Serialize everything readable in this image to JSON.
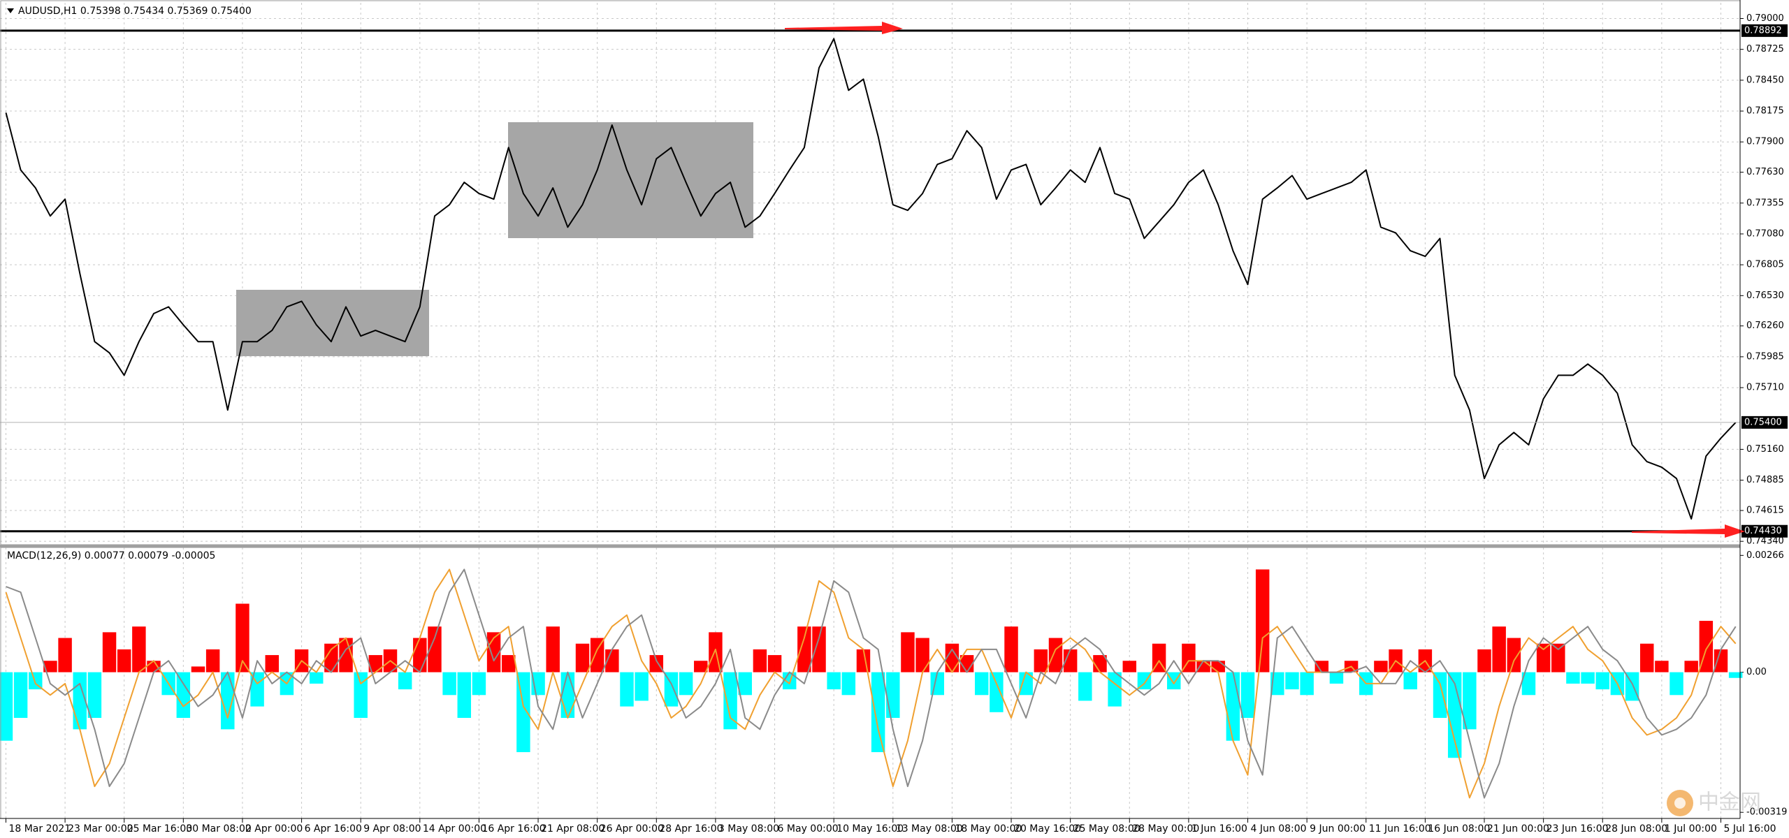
{
  "chart_data": [
    {
      "type": "line",
      "title": "AUDUSD,H1 0.75398 0.75434 0.75369 0.75400",
      "color": "#000000",
      "values": [
        0.7816,
        0.7765,
        0.7749,
        0.7724,
        0.7739,
        0.7673,
        0.7612,
        0.7602,
        0.7582,
        0.7612,
        0.7637,
        0.7643,
        0.7627,
        0.7612,
        0.7612,
        0.7551,
        0.7612,
        0.7612,
        0.7622,
        0.7643,
        0.7648,
        0.7627,
        0.7612,
        0.7643,
        0.7617,
        0.7622,
        0.7617,
        0.7612,
        0.7643,
        0.7724,
        0.7734,
        0.7754,
        0.7744,
        0.7739,
        0.7785,
        0.7744,
        0.7724,
        0.7749,
        0.7714,
        0.7734,
        0.7765,
        0.7805,
        0.7765,
        0.7734,
        0.7775,
        0.7785,
        0.7754,
        0.7724,
        0.7744,
        0.7754,
        0.7714,
        0.7724,
        0.7744,
        0.7765,
        0.7785,
        0.7856,
        0.7882,
        0.7836,
        0.7846,
        0.7795,
        0.7734,
        0.7729,
        0.7744,
        0.777,
        0.7775,
        0.78,
        0.7785,
        0.7739,
        0.7765,
        0.777,
        0.7734,
        0.7749,
        0.7765,
        0.7754,
        0.7785,
        0.7744,
        0.7739,
        0.7704,
        0.7719,
        0.7734,
        0.7754,
        0.7765,
        0.7734,
        0.7693,
        0.7663,
        0.7739,
        0.7749,
        0.776,
        0.7739,
        0.7744,
        0.7749,
        0.7754,
        0.7765,
        0.7714,
        0.7709,
        0.7693,
        0.7688,
        0.7704,
        0.7582,
        0.7551,
        0.749,
        0.752,
        0.7531,
        0.752,
        0.7561,
        0.7582,
        0.7582,
        0.7592,
        0.7582,
        0.7566,
        0.752,
        0.7505,
        0.75,
        0.749,
        0.7454,
        0.751,
        0.7526,
        0.754
      ],
      "xlim": [
        -0.4,
        117.3
      ],
      "ylim": [
        0.7431,
        0.7914
      ],
      "yticks": [
        {
          "value": 0.79,
          "label": "0.79000"
        },
        0.78725,
        {
          "value": 0.7845,
          "label": "0.78450"
        },
        0.78175,
        {
          "value": 0.779,
          "label": "0.77900"
        },
        {
          "value": 0.7763,
          "label": "0.77630"
        },
        0.77355,
        {
          "value": 0.7708,
          "label": "0.77080"
        },
        0.76805,
        {
          "value": 0.7653,
          "label": "0.76530"
        },
        {
          "value": 0.7626,
          "label": "0.76260"
        },
        0.75985,
        {
          "value": 0.7571,
          "label": "0.75710"
        },
        {
          "value": 0.7516,
          "label": "0.75160"
        },
        0.74885,
        0.74615,
        {
          "value": 0.7434,
          "label": "0.74340"
        }
      ],
      "grid": true,
      "hlines": [
        {
          "value": 0.78892,
          "label": "0.78892"
        },
        {
          "value": 0.7443,
          "label": "0.74430"
        }
      ],
      "last_price": {
        "value": 0.754,
        "label": "0.75400"
      }
    },
    {
      "type": "macd",
      "title": "MACD(12,26,9) 0.00077 0.00079 -0.00005",
      "positive_color": "#ff0000",
      "negative_color": "#00ffff",
      "values": [
        -0.00156,
        -0.00104,
        -0.00039,
        0.00026,
        0.00078,
        -0.0013,
        -0.00104,
        0.00091,
        0.00052,
        0.00104,
        0.00026,
        -0.00052,
        -0.00104,
        0.00013,
        0.00052,
        -0.0013,
        0.00156,
        -0.00078,
        0.00039,
        -0.00052,
        0.00052,
        -0.00026,
        0.00065,
        0.00078,
        -0.00104,
        0.00039,
        0.00052,
        -0.00039,
        0.00078,
        0.00104,
        -0.00052,
        -0.00104,
        -0.00052,
        0.00091,
        0.00039,
        -0.00182,
        -0.00052,
        0.00104,
        -0.00104,
        0.00065,
        0.00078,
        0.00052,
        -0.00078,
        -0.00065,
        0.00039,
        -0.00078,
        -0.00052,
        0.00026,
        0.00091,
        -0.0013,
        -0.00052,
        0.00052,
        0.00039,
        -0.00039,
        0.00104,
        0.00104,
        -0.00039,
        -0.00052,
        0.00052,
        -0.00182,
        -0.00104,
        0.00091,
        0.00078,
        -0.00052,
        0.00065,
        0.00039,
        -0.00052,
        -0.00091,
        0.00104,
        -0.00052,
        0.00052,
        0.00078,
        0.00052,
        -0.00065,
        0.00039,
        -0.00078,
        0.00026,
        -0.00039,
        0.00065,
        -0.00039,
        0.00065,
        0.00026,
        0.00026,
        -0.00156,
        -0.00104,
        0.00234,
        -0.00052,
        -0.00039,
        -0.00052,
        0.00026,
        -0.00026,
        0.00026,
        -0.00052,
        0.00026,
        0.00052,
        -0.00039,
        0.00052,
        -0.00104,
        -0.00195,
        -0.0013,
        0.00052,
        0.00104,
        0.00078,
        -0.00052,
        0.00065,
        0.00065,
        -0.00026,
        -0.00026,
        -0.00039,
        -0.00052,
        -0.00065,
        0.00065,
        0.00026,
        -0.00052,
        0.00026,
        0.00117,
        0.00052,
        -0.00013
      ],
      "series": [
        {
          "color": "#f0a030",
          "values": [
            0.00182,
            0.00078,
            -0.00026,
            -0.00052,
            -0.00026,
            -0.0013,
            -0.0026,
            -0.00208,
            -0.00104,
            0,
            0.00026,
            -0.00026,
            -0.00078,
            -0.00052,
            0,
            -0.00104,
            0.00026,
            -0.00026,
            0,
            -0.00026,
            0.00026,
            0,
            0.00052,
            0.00078,
            -0.00026,
            0,
            0.00026,
            0,
            0.00078,
            0.00182,
            0.00234,
            0.0013,
            0.00026,
            0.00078,
            0.00104,
            -0.00078,
            -0.0013,
            0,
            -0.00104,
            -0.00026,
            0.00052,
            0.00104,
            0.0013,
            0.00026,
            -0.00026,
            -0.00104,
            -0.00078,
            -0.00026,
            0.00052,
            -0.00104,
            -0.0013,
            -0.00052,
            0,
            -0.00026,
            0.00078,
            0.00208,
            0.00182,
            0.00078,
            0.00052,
            -0.0013,
            -0.0026,
            -0.00156,
            0,
            0.00052,
            0,
            0.00052,
            0.00052,
            -0.00026,
            -0.00104,
            0,
            -0.00026,
            0.00052,
            0.00078,
            0.00052,
            0,
            -0.00026,
            -0.00052,
            -0.00026,
            0.00026,
            -0.00026,
            0.00026,
            0.00026,
            0,
            -0.00156,
            -0.00234,
            0.00078,
            0.00104,
            0.00052,
            0,
            0,
            0,
            0.00013,
            -0.00026,
            -0.00026,
            0.00026,
            0,
            0.00026,
            -0.00026,
            -0.00156,
            -0.00286,
            -0.00208,
            -0.00078,
            0.00026,
            0.00078,
            0.00052,
            0.00078,
            0.00104,
            0.00052,
            0.00026,
            -0.00026,
            -0.00104,
            -0.00143,
            -0.0013,
            -0.00104,
            -0.00052,
            0.00052,
            0.00104,
            0.00065
          ]
        },
        {
          "color": "#8a8a8a",
          "values": [
            0.00195,
            0.00182,
            0.00078,
            -0.00026,
            -0.00052,
            -0.00026,
            -0.0013,
            -0.0026,
            -0.00208,
            -0.00104,
            0,
            0.00026,
            -0.00026,
            -0.00078,
            -0.00052,
            0,
            -0.00104,
            0.00026,
            -0.00026,
            0,
            -0.00026,
            0.00026,
            0,
            0.00052,
            0.00078,
            -0.00026,
            0,
            0.00026,
            0,
            0.00078,
            0.00182,
            0.00234,
            0.0013,
            0.00026,
            0.00078,
            0.00104,
            -0.00078,
            -0.0013,
            0,
            -0.00104,
            -0.00026,
            0.00052,
            0.00104,
            0.0013,
            0.00026,
            -0.00026,
            -0.00104,
            -0.00078,
            -0.00026,
            0.00052,
            -0.00104,
            -0.0013,
            -0.00052,
            0,
            -0.00026,
            0.00078,
            0.00208,
            0.00182,
            0.00078,
            0.00052,
            -0.0013,
            -0.0026,
            -0.00156,
            0,
            0.00052,
            0,
            0.00052,
            0.00052,
            -0.00026,
            -0.00104,
            0,
            -0.00026,
            0.00052,
            0.00078,
            0.00052,
            0,
            -0.00026,
            -0.00052,
            -0.00026,
            0.00026,
            -0.00026,
            0.00026,
            0.00026,
            0,
            -0.00156,
            -0.00234,
            0.00078,
            0.00104,
            0.00052,
            0,
            0,
            0,
            0.00013,
            -0.00026,
            -0.00026,
            0.00026,
            0,
            0.00026,
            -0.00026,
            -0.00156,
            -0.00286,
            -0.00208,
            -0.00078,
            0.00026,
            0.00078,
            0.00052,
            0.00078,
            0.00104,
            0.00052,
            0.00026,
            -0.00026,
            -0.00104,
            -0.00143,
            -0.0013,
            -0.00104,
            -0.00052,
            0.00052,
            0.00104
          ]
        }
      ],
      "xlim": [
        -0.4,
        117.3
      ],
      "ylim": [
        -0.00333,
        0.00284
      ],
      "yticks": [
        0.00266,
        {
          "value": 0,
          "label": "0.00"
        },
        -0.00319
      ],
      "xticks": [
        {
          "value": 0,
          "label": "18 Mar 2021"
        },
        {
          "value": 4,
          "label": "23 Mar 00:00"
        },
        {
          "value": 8,
          "label": "25 Mar 16:00"
        },
        {
          "value": 12,
          "label": "30 Mar 08:00"
        },
        {
          "value": 16,
          "label": "2 Apr 00:00"
        },
        {
          "value": 20,
          "label": "6 Apr 16:00"
        },
        {
          "value": 24,
          "label": "9 Apr 08:00"
        },
        {
          "value": 28,
          "label": "14 Apr 00:00"
        },
        {
          "value": 32,
          "label": "16 Apr 16:00"
        },
        {
          "value": 36,
          "label": "21 Apr 08:00"
        },
        {
          "value": 40,
          "label": "26 Apr 00:00"
        },
        {
          "value": 44,
          "label": "28 Apr 16:00"
        },
        {
          "value": 48,
          "label": "3 May 08:00"
        },
        {
          "value": 52,
          "label": "6 May 00:00"
        },
        {
          "value": 56,
          "label": "10 May 16:00"
        },
        {
          "value": 60,
          "label": "13 May 08:00"
        },
        {
          "value": 64,
          "label": "18 May 00:00"
        },
        {
          "value": 68,
          "label": "20 May 16:00"
        },
        {
          "value": 72,
          "label": "25 May 08:00"
        },
        {
          "value": 76,
          "label": "28 May 00:00"
        },
        {
          "value": 80,
          "label": "1 Jun 16:00"
        },
        {
          "value": 84,
          "label": "4 Jun 08:00"
        },
        {
          "value": 88,
          "label": "9 Jun 00:00"
        },
        {
          "value": 92,
          "label": "11 Jun 16:00"
        },
        {
          "value": 96,
          "label": "16 Jun 08:00"
        },
        {
          "value": 100,
          "label": "21 Jun 00:00"
        },
        {
          "value": 104,
          "label": "23 Jun 16:00"
        },
        {
          "value": 108,
          "label": "28 Jun 08:00"
        },
        {
          "value": 112,
          "label": "1 Jul 00:00"
        },
        {
          "value": 116,
          "label": "5 Jul 16:00"
        }
      ],
      "grid": true
    }
  ],
  "watermark": "中金网"
}
